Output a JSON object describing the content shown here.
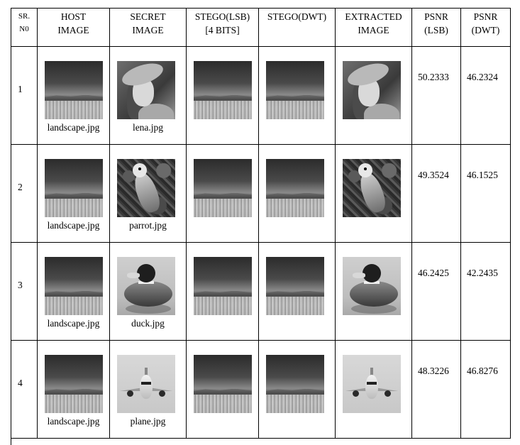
{
  "headers": {
    "sr_no_line1": "SR.",
    "sr_no_line2": "N0",
    "host_line1": "HOST",
    "host_line2": "IMAGE",
    "secret_line1": "SECRET",
    "secret_line2": "IMAGE",
    "stego_lsb_line1": "STEGO(LSB)",
    "stego_lsb_line2": "[4 BITS]",
    "stego_dwt_line1": "STEGO(DWT)",
    "extracted_line1": "EXTRACTED",
    "extracted_line2": "IMAGE",
    "psnr_lsb_line1": "PSNR",
    "psnr_lsb_line2": "(LSB)",
    "psnr_dwt_line1": "PSNR",
    "psnr_dwt_line2": "(DWT)"
  },
  "rows": [
    {
      "sr": "1",
      "host_caption": "landscape.jpg",
      "secret_image": "lena",
      "secret_caption": "lena.jpg",
      "psnr_lsb": "50.2333",
      "psnr_dwt": "46.2324"
    },
    {
      "sr": "2",
      "host_caption": "landscape.jpg",
      "secret_image": "parrot",
      "secret_caption": "parrot.jpg",
      "psnr_lsb": "49.3524",
      "psnr_dwt": "46.1525"
    },
    {
      "sr": "3",
      "host_caption": "landscape.jpg",
      "secret_image": "duck",
      "secret_caption": "duck.jpg",
      "psnr_lsb": "46.2425",
      "psnr_dwt": "42.2435"
    },
    {
      "sr": "4",
      "host_caption": "landscape.jpg",
      "secret_image": "plane",
      "secret_caption": "plane.jpg",
      "psnr_lsb": "48.3226",
      "psnr_dwt": "46.8276"
    }
  ]
}
